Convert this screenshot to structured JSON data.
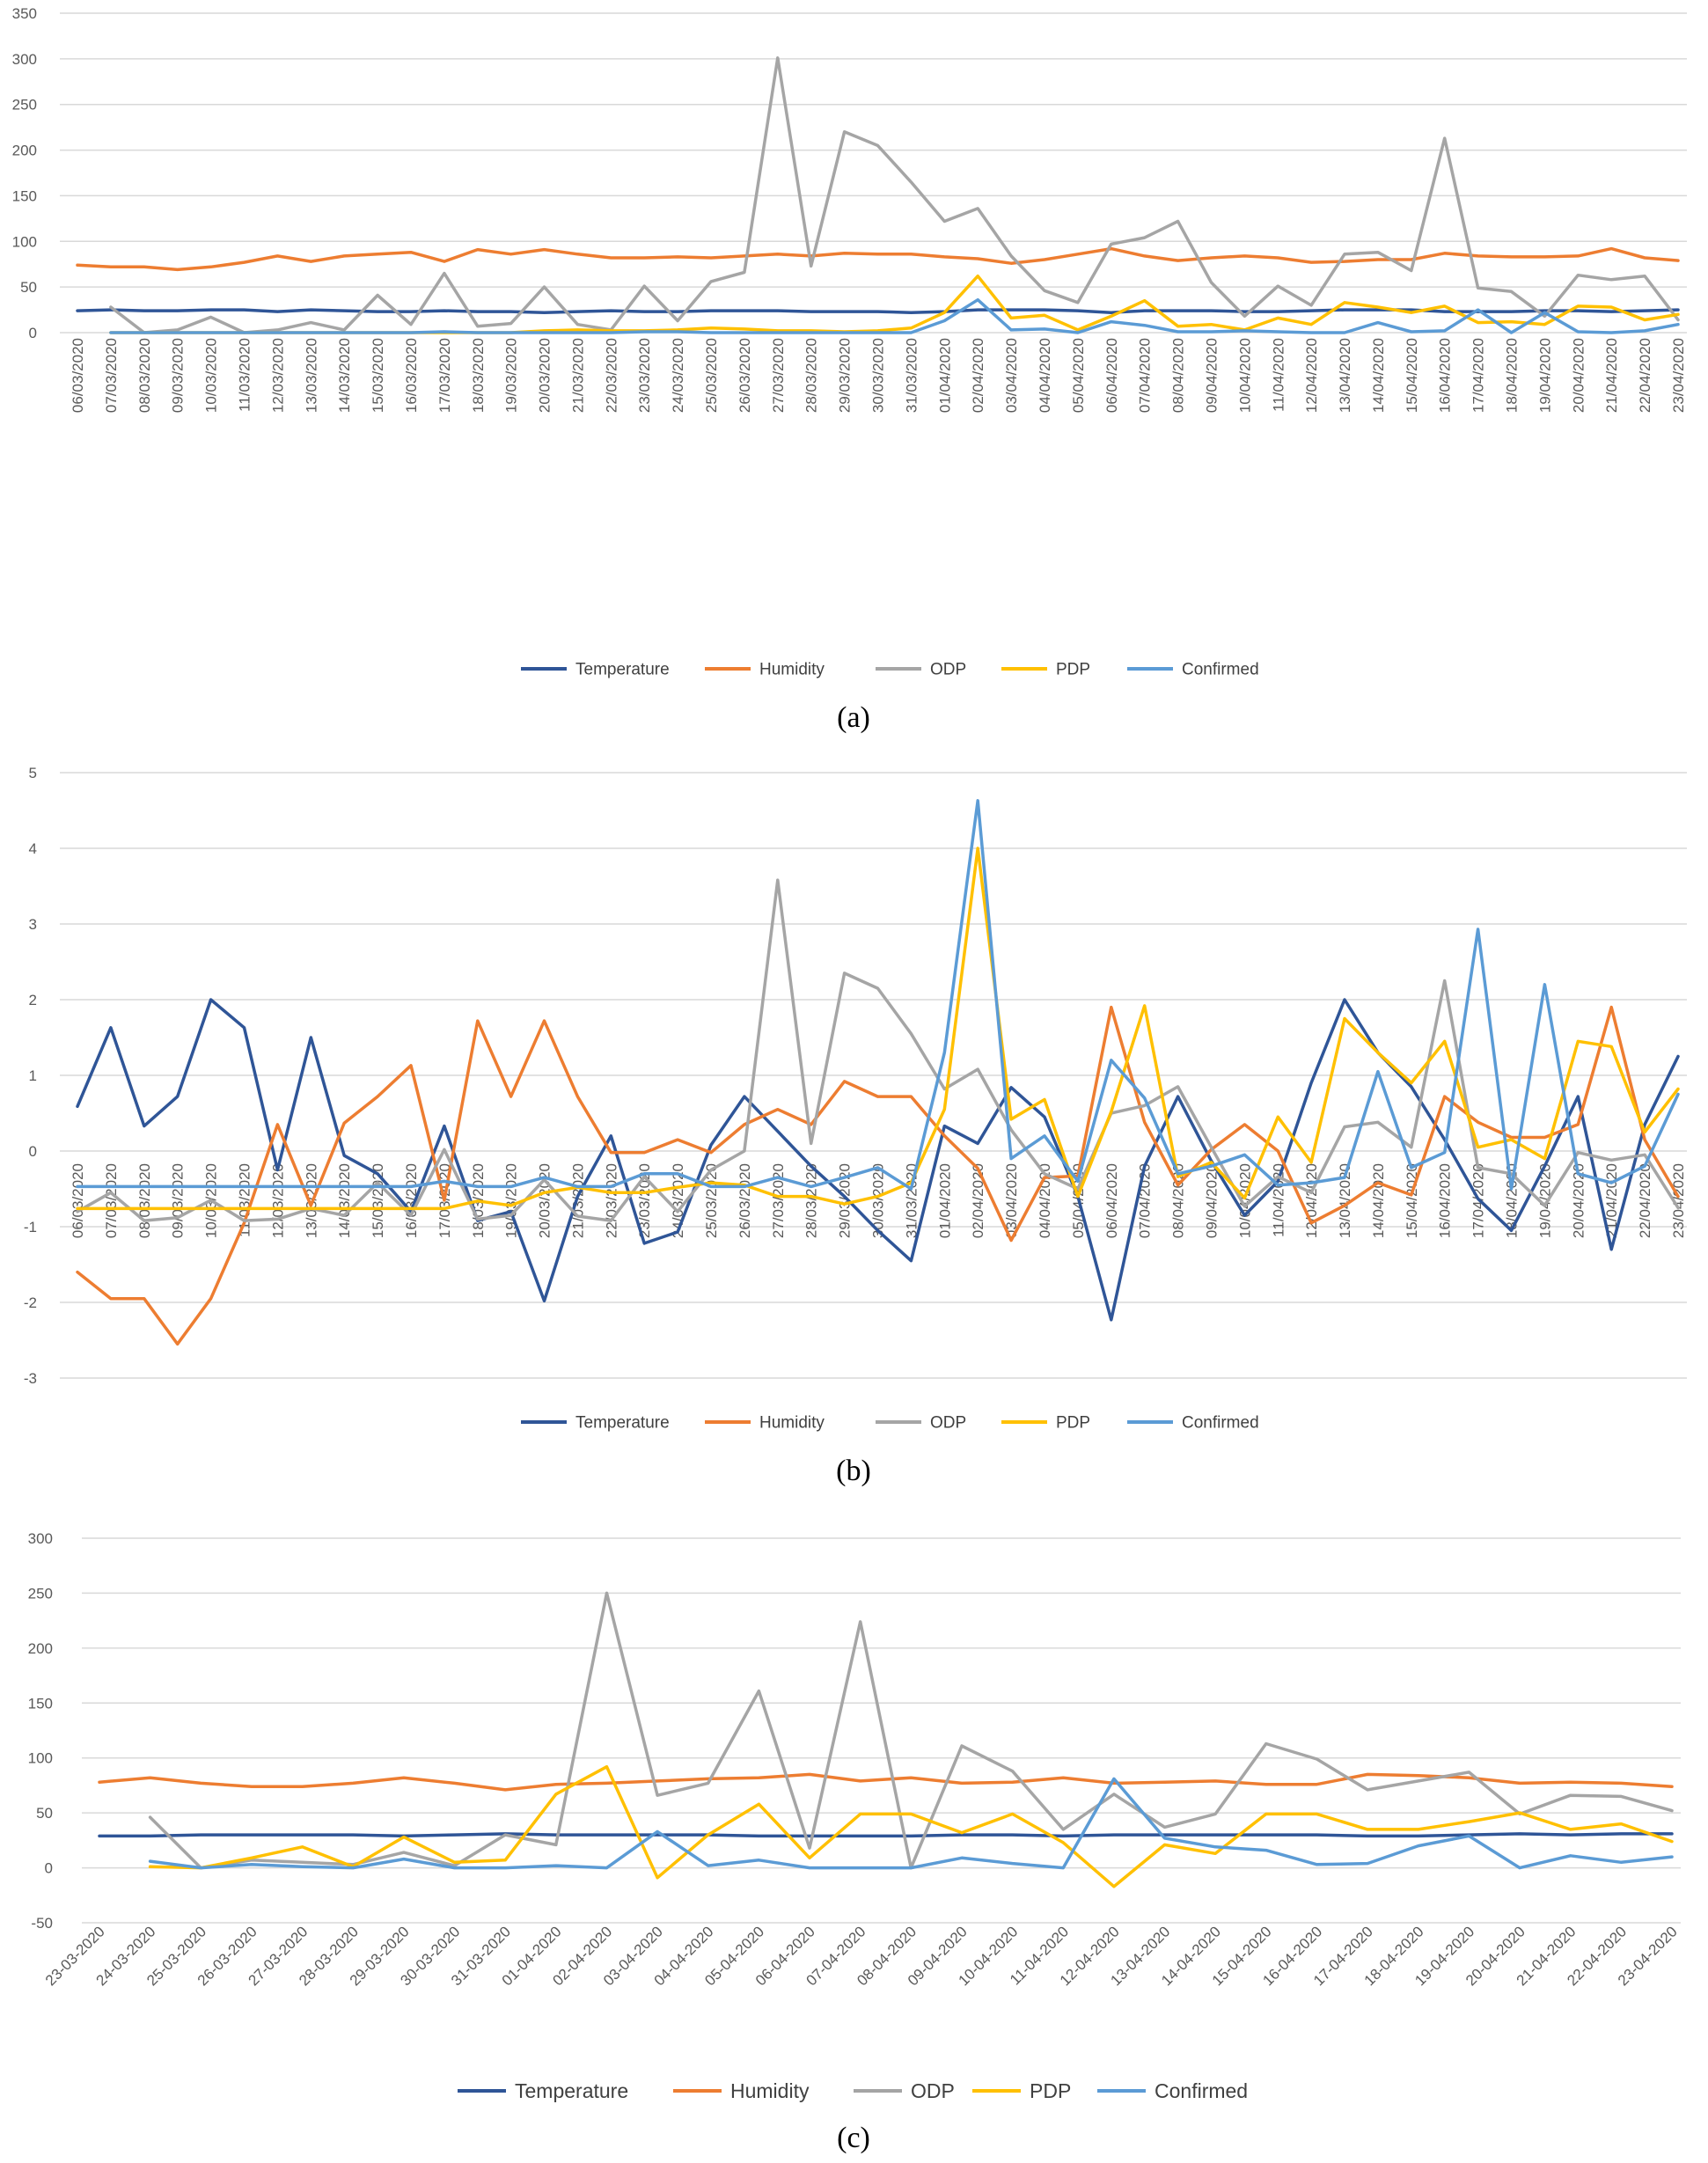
{
  "colors": {
    "Temperature": "#2f5597",
    "Humidity": "#ed7d31",
    "ODP": "#a5a5a5",
    "PDP": "#ffc000",
    "Confirmed": "#5b9bd5",
    "grid": "#d9d9d9",
    "tick": "#595959"
  },
  "chart_data": [
    {
      "type": "line",
      "caption": "(a)",
      "ylim": [
        0,
        350
      ],
      "yticks": [
        0,
        50,
        100,
        150,
        200,
        250,
        300,
        350
      ],
      "legend_position": "bottom",
      "categories": [
        "06/03/2020",
        "07/03/2020",
        "08/03/2020",
        "09/03/2020",
        "10/03/2020",
        "11/03/2020",
        "12/03/2020",
        "13/03/2020",
        "14/03/2020",
        "15/03/2020",
        "16/03/2020",
        "17/03/2020",
        "18/03/2020",
        "19/03/2020",
        "20/03/2020",
        "21/03/2020",
        "22/03/2020",
        "23/03/2020",
        "24/03/2020",
        "25/03/2020",
        "26/03/2020",
        "27/03/2020",
        "28/03/2020",
        "29/03/2020",
        "30/03/2020",
        "31/03/2020",
        "01/04/2020",
        "02/04/2020",
        "03/04/2020",
        "04/04/2020",
        "05/04/2020",
        "06/04/2020",
        "07/04/2020",
        "08/04/2020",
        "09/04/2020",
        "10/04/2020",
        "11/04/2020",
        "12/04/2020",
        "13/04/2020",
        "14/04/2020",
        "15/04/2020",
        "16/04/2020",
        "17/04/2020",
        "18/04/2020",
        "19/04/2020",
        "20/04/2020",
        "21/04/2020",
        "22/04/2020",
        "23/04/2020"
      ],
      "series": [
        {
          "name": "Temperature",
          "values": [
            24,
            25,
            24,
            24,
            25,
            25,
            23,
            25,
            24,
            23,
            23,
            24,
            23,
            23,
            22,
            23,
            24,
            23,
            23,
            24,
            24,
            24,
            23,
            23,
            23,
            22,
            23,
            25,
            25,
            25,
            24,
            22,
            24,
            24,
            24,
            23,
            23,
            24,
            25,
            25,
            25,
            23,
            23,
            23,
            24,
            24,
            23,
            24,
            25
          ]
        },
        {
          "name": "Humidity",
          "values": [
            74,
            72,
            72,
            69,
            72,
            77,
            84,
            78,
            84,
            86,
            88,
            78,
            91,
            86,
            91,
            86,
            82,
            82,
            83,
            82,
            84,
            86,
            84,
            87,
            86,
            86,
            83,
            81,
            76,
            80,
            86,
            92,
            84,
            79,
            82,
            84,
            82,
            77,
            78,
            80,
            80,
            87,
            84,
            83,
            83,
            84,
            92,
            82,
            79
          ]
        },
        {
          "name": "ODP",
          "values": [
            null,
            28,
            0,
            3,
            17,
            0,
            3,
            11,
            3,
            41,
            9,
            65,
            7,
            10,
            50,
            9,
            3,
            51,
            13,
            56,
            66,
            301,
            73,
            220,
            205,
            165,
            122,
            136,
            84,
            46,
            33,
            97,
            104,
            122,
            55,
            18,
            51,
            30,
            86,
            88,
            68,
            213,
            49,
            45,
            18,
            63,
            58,
            62,
            14
          ]
        },
        {
          "name": "PDP",
          "values": [
            null,
            0,
            0,
            0,
            0,
            0,
            0,
            0,
            0,
            0,
            0,
            0,
            0,
            0,
            2,
            3,
            2,
            2,
            3,
            5,
            4,
            2,
            2,
            1,
            2,
            5,
            22,
            62,
            16,
            19,
            3,
            18,
            35,
            7,
            9,
            3,
            16,
            9,
            33,
            28,
            22,
            29,
            11,
            12,
            9,
            29,
            28,
            14,
            20
          ]
        },
        {
          "name": "Confirmed",
          "values": [
            null,
            0,
            0,
            0,
            0,
            0,
            0,
            0,
            0,
            0,
            0,
            1,
            0,
            0,
            0,
            0,
            0,
            1,
            1,
            0,
            0,
            0,
            0,
            0,
            0,
            0,
            13,
            36,
            3,
            4,
            0,
            12,
            8,
            1,
            1,
            2,
            1,
            0,
            0,
            11,
            1,
            2,
            25,
            0,
            22,
            1,
            0,
            2,
            9
          ]
        }
      ]
    },
    {
      "type": "line",
      "caption": "(b)",
      "ylim": [
        -3,
        5
      ],
      "yticks": [
        -3,
        -2,
        -1,
        0,
        1,
        2,
        3,
        4,
        5
      ],
      "legend_position": "bottom",
      "categories": [
        "06/03/2020",
        "07/03/2020",
        "08/03/2020",
        "09/03/2020",
        "10/03/2020",
        "11/03/2020",
        "12/03/2020",
        "13/03/2020",
        "14/03/2020",
        "15/03/2020",
        "16/03/2020",
        "17/03/2020",
        "18/03/2020",
        "19/03/2020",
        "20/03/2020",
        "21/03/2020",
        "22/03/2020",
        "23/03/2020",
        "24/03/2020",
        "25/03/2020",
        "26/03/2020",
        "27/03/2020",
        "28/03/2020",
        "29/03/2020",
        "30/03/2020",
        "31/03/2020",
        "01/04/2020",
        "02/04/2020",
        "03/04/2020",
        "04/04/2020",
        "05/04/2020",
        "06/04/2020",
        "07/04/2020",
        "08/04/2020",
        "09/04/2020",
        "10/04/2020",
        "11/04/2020",
        "12/04/2020",
        "13/04/2020",
        "14/04/2020",
        "15/04/2020",
        "16/04/2020",
        "17/04/2020",
        "18/04/2020",
        "19/04/2020",
        "20/04/2020",
        "21/04/2020",
        "22/04/2020",
        "23/04/2020"
      ],
      "series": [
        {
          "name": "Temperature",
          "values": [
            0.59,
            1.63,
            0.33,
            0.72,
            2.0,
            1.63,
            -0.25,
            1.5,
            -0.06,
            -0.3,
            -0.8,
            0.33,
            -0.92,
            -0.8,
            -1.98,
            -0.6,
            0.2,
            -1.22,
            -1.07,
            0.08,
            0.72,
            0.26,
            -0.2,
            -0.6,
            -1.05,
            -1.45,
            0.33,
            0.1,
            0.84,
            0.45,
            -0.6,
            -2.23,
            -0.2,
            0.72,
            -0.13,
            -0.85,
            -0.4,
            0.9,
            2.0,
            1.3,
            0.85,
            0.15,
            -0.63,
            -1.05,
            -0.2,
            0.72,
            -1.3,
            0.35,
            1.25
          ]
        },
        {
          "name": "Humidity",
          "values": [
            -1.6,
            -1.95,
            -1.95,
            -2.55,
            -1.95,
            -0.95,
            0.35,
            -0.72,
            0.37,
            0.72,
            1.13,
            -0.65,
            1.72,
            0.72,
            1.72,
            0.72,
            -0.02,
            -0.02,
            0.15,
            -0.02,
            0.35,
            0.55,
            0.35,
            0.92,
            0.72,
            0.72,
            0.2,
            -0.23,
            -1.18,
            -0.35,
            -0.33,
            1.9,
            0.38,
            -0.45,
            0.02,
            0.35,
            0.0,
            -0.95,
            -0.72,
            -0.42,
            -0.58,
            0.72,
            0.38,
            0.18,
            0.18,
            0.35,
            1.9,
            0.15,
            -0.6
          ]
        },
        {
          "name": "ODP",
          "values": [
            -0.8,
            -0.55,
            -0.92,
            -0.88,
            -0.65,
            -0.92,
            -0.9,
            -0.76,
            -0.85,
            -0.42,
            -0.85,
            0.02,
            -0.9,
            -0.85,
            -0.38,
            -0.86,
            -0.92,
            -0.34,
            -0.8,
            -0.25,
            0.0,
            3.58,
            0.1,
            2.35,
            2.15,
            1.55,
            0.82,
            1.08,
            0.28,
            -0.3,
            -0.5,
            0.5,
            0.6,
            0.85,
            0.05,
            -0.73,
            -0.34,
            -0.55,
            0.32,
            0.38,
            0.05,
            2.25,
            -0.22,
            -0.3,
            -0.72,
            -0.02,
            -0.12,
            -0.05,
            -0.75
          ]
        },
        {
          "name": "PDP",
          "values": [
            -0.76,
            -0.76,
            -0.76,
            -0.76,
            -0.76,
            -0.76,
            -0.76,
            -0.76,
            -0.76,
            -0.76,
            -0.76,
            -0.76,
            -0.66,
            -0.72,
            -0.55,
            -0.48,
            -0.55,
            -0.55,
            -0.48,
            -0.42,
            -0.45,
            -0.6,
            -0.6,
            -0.7,
            -0.6,
            -0.42,
            0.55,
            4.0,
            0.42,
            0.68,
            -0.6,
            0.52,
            1.92,
            -0.34,
            -0.15,
            -0.62,
            0.45,
            -0.15,
            1.75,
            1.3,
            0.9,
            1.45,
            0.05,
            0.15,
            -0.1,
            1.45,
            1.38,
            0.25,
            0.82
          ]
        },
        {
          "name": "Confirmed",
          "values": [
            -0.47,
            -0.47,
            -0.47,
            -0.47,
            -0.47,
            -0.47,
            -0.47,
            -0.47,
            -0.47,
            -0.47,
            -0.47,
            -0.4,
            -0.47,
            -0.47,
            -0.35,
            -0.47,
            -0.47,
            -0.3,
            -0.3,
            -0.47,
            -0.47,
            -0.35,
            -0.47,
            -0.35,
            -0.22,
            -0.5,
            1.3,
            4.63,
            -0.1,
            0.2,
            -0.4,
            1.2,
            0.7,
            -0.3,
            -0.2,
            -0.05,
            -0.45,
            -0.42,
            -0.35,
            1.05,
            -0.22,
            -0.02,
            2.93,
            -0.5,
            2.2,
            -0.3,
            -0.42,
            -0.2,
            0.75
          ]
        }
      ]
    },
    {
      "type": "line",
      "caption": "(c)",
      "ylim": [
        -50,
        300
      ],
      "yticks": [
        -50,
        0,
        50,
        100,
        150,
        200,
        250,
        300
      ],
      "legend_position": "bottom",
      "categories": [
        "23-03-2020",
        "24-03-2020",
        "25-03-2020",
        "26-03-2020",
        "27-03-2020",
        "28-03-2020",
        "29-03-2020",
        "30-03-2020",
        "31-03-2020",
        "01-04-2020",
        "02-04-2020",
        "03-04-2020",
        "04-04-2020",
        "05-04-2020",
        "06-04-2020",
        "07-04-2020",
        "08-04-2020",
        "09-04-2020",
        "10-04-2020",
        "11-04-2020",
        "12-04-2020",
        "13-04-2020",
        "14-04-2020",
        "15-04-2020",
        "16-04-2020",
        "17-04-2020",
        "18-04-2020",
        "19-04-2020",
        "20-04-2020",
        "21-04-2020",
        "22-04-2020",
        "23-04-2020"
      ],
      "series": [
        {
          "name": "Temperature",
          "values": [
            29,
            29,
            30,
            30,
            30,
            30,
            29,
            30,
            31,
            30,
            30,
            30,
            30,
            29,
            29,
            29,
            29,
            30,
            30,
            29,
            30,
            30,
            30,
            30,
            30,
            29,
            29,
            30,
            31,
            30,
            31,
            31
          ]
        },
        {
          "name": "Humidity",
          "values": [
            78,
            82,
            77,
            74,
            74,
            77,
            82,
            77,
            71,
            76,
            77,
            79,
            81,
            82,
            85,
            79,
            82,
            77,
            78,
            82,
            77,
            78,
            79,
            76,
            76,
            85,
            84,
            82,
            77,
            78,
            77,
            74
          ]
        },
        {
          "name": "ODP",
          "values": [
            null,
            46,
            0,
            7,
            5,
            3,
            14,
            2,
            30,
            21,
            250,
            66,
            77,
            161,
            18,
            224,
            0,
            111,
            88,
            35,
            67,
            37,
            49,
            113,
            99,
            71,
            79,
            87,
            49,
            66,
            65,
            52
          ]
        },
        {
          "name": "PDP",
          "values": [
            null,
            1,
            0,
            9,
            19,
            1,
            28,
            5,
            7,
            67,
            92,
            -9,
            30,
            58,
            9,
            49,
            49,
            32,
            49,
            23,
            -17,
            21,
            13,
            49,
            49,
            35,
            35,
            42,
            50,
            35,
            40,
            24
          ]
        },
        {
          "name": "Confirmed",
          "values": [
            null,
            6,
            0,
            3,
            1,
            0,
            8,
            0,
            0,
            2,
            0,
            33,
            2,
            7,
            0,
            0,
            0,
            9,
            4,
            0,
            81,
            27,
            19,
            16,
            3,
            4,
            20,
            29,
            0,
            11,
            5,
            10
          ]
        }
      ]
    }
  ]
}
